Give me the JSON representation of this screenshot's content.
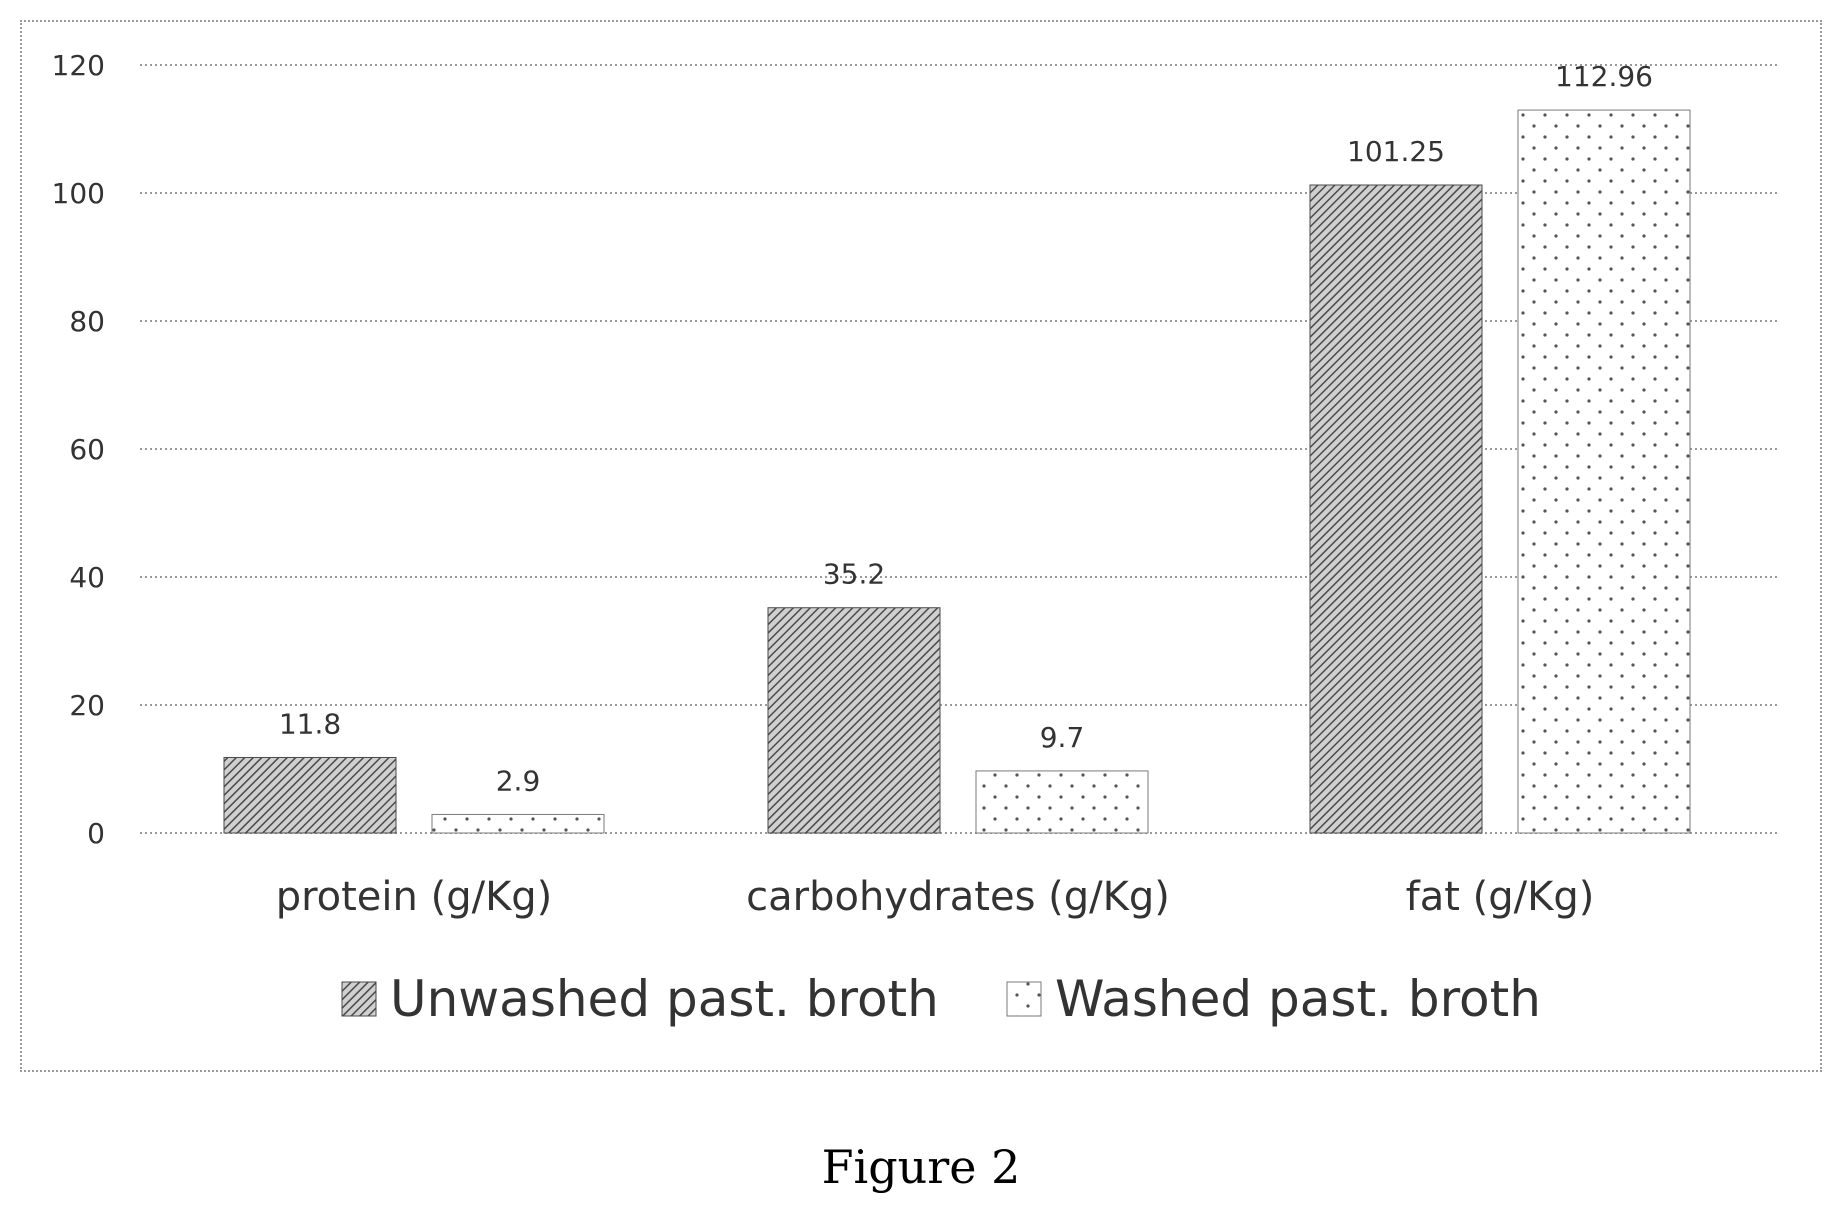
{
  "caption": "Figure 2",
  "colors": {
    "unwashed": "#4a4a4a",
    "washed": "#7a7a7a",
    "grid": "#9a9a9a"
  },
  "chart_data": {
    "type": "bar",
    "title": "",
    "xlabel": "",
    "ylabel": "",
    "categories": [
      "protein (g/Kg)",
      "carbohydrates (g/Kg)",
      "fat (g/Kg)"
    ],
    "series": [
      {
        "name": "Unwashed past. broth",
        "values": [
          11.8,
          35.2,
          101.25
        ],
        "labels": [
          "11.8",
          "35.2",
          "101.25"
        ],
        "pattern": "diagonal-hatch"
      },
      {
        "name": "Washed past. broth",
        "values": [
          2.9,
          9.7,
          112.96
        ],
        "labels": [
          "2.9",
          "9.7",
          "112.96"
        ],
        "pattern": "dots"
      }
    ],
    "ylim": [
      0,
      120
    ],
    "yticks": [
      "0",
      "20",
      "40",
      "60",
      "80",
      "100",
      "120"
    ],
    "grid": "horizontal dotted",
    "legend_position": "bottom"
  }
}
